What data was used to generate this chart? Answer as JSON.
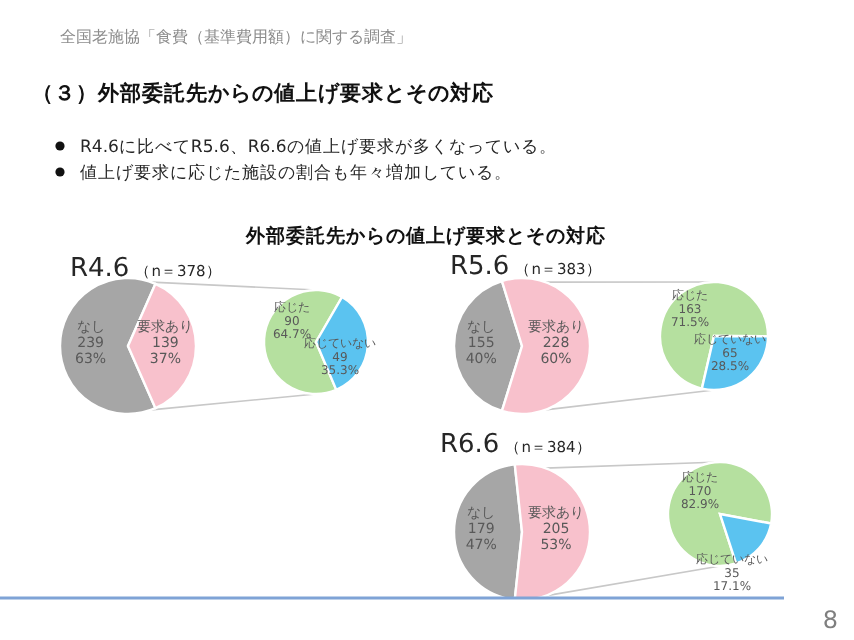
{
  "chart_data": [
    {
      "type": "pie",
      "title": "R4.6",
      "subtitle": "（n＝378）",
      "categories": [
        "なし",
        "要求あり"
      ],
      "values": [
        239,
        139
      ],
      "value_labels": [
        "239\n63%",
        "139\n37%"
      ],
      "colors": [
        "#a6a6a6",
        "#f8c1cc"
      ],
      "annotations": [
        "全国老施協「食費（基準費用額）に関する調査」",
        "（３）外部委託先からの値上げ要求とその対応",
        "R4.6に比べてR5.6、R6.6の値上げ要求が多くなっている。",
        "値上げ要求に応じた施設の割合も年々増加している。",
        "外部委託先からの値上げ要求とその対応",
        "8"
      ]
    },
    {
      "type": "pie",
      "categories": [
        "応じた",
        "応じていない"
      ],
      "values": [
        90,
        49
      ],
      "value_labels": [
        "90\n64.7%",
        "49\n35.3%"
      ],
      "colors": [
        "#b5e09f",
        "#5bc3f0"
      ]
    },
    {
      "type": "pie",
      "title": "R5.6",
      "subtitle": "（n＝383）",
      "categories": [
        "なし",
        "要求あり"
      ],
      "values": [
        155,
        228
      ],
      "value_labels": [
        "155\n40%",
        "228\n60%"
      ],
      "colors": [
        "#a6a6a6",
        "#f8c1cc"
      ]
    },
    {
      "type": "pie",
      "categories": [
        "応じた",
        "応じていない"
      ],
      "values": [
        163,
        65
      ],
      "value_labels": [
        "163\n71.5%",
        "65\n28.5%"
      ],
      "colors": [
        "#b5e09f",
        "#5bc3f0"
      ]
    },
    {
      "type": "pie",
      "title": "R6.6",
      "subtitle": "（n＝384）",
      "categories": [
        "なし",
        "要求あり"
      ],
      "values": [
        179,
        205
      ],
      "value_labels": [
        "179\n47%",
        "205\n53%"
      ],
      "colors": [
        "#a6a6a6",
        "#f8c1cc"
      ]
    },
    {
      "type": "pie",
      "categories": [
        "応じた",
        "応じていない"
      ],
      "values": [
        170,
        35
      ],
      "value_labels": [
        "170\n82.9%",
        "35\n17.1%"
      ],
      "colors": [
        "#b5e09f",
        "#5bc3f0"
      ]
    }
  ]
}
